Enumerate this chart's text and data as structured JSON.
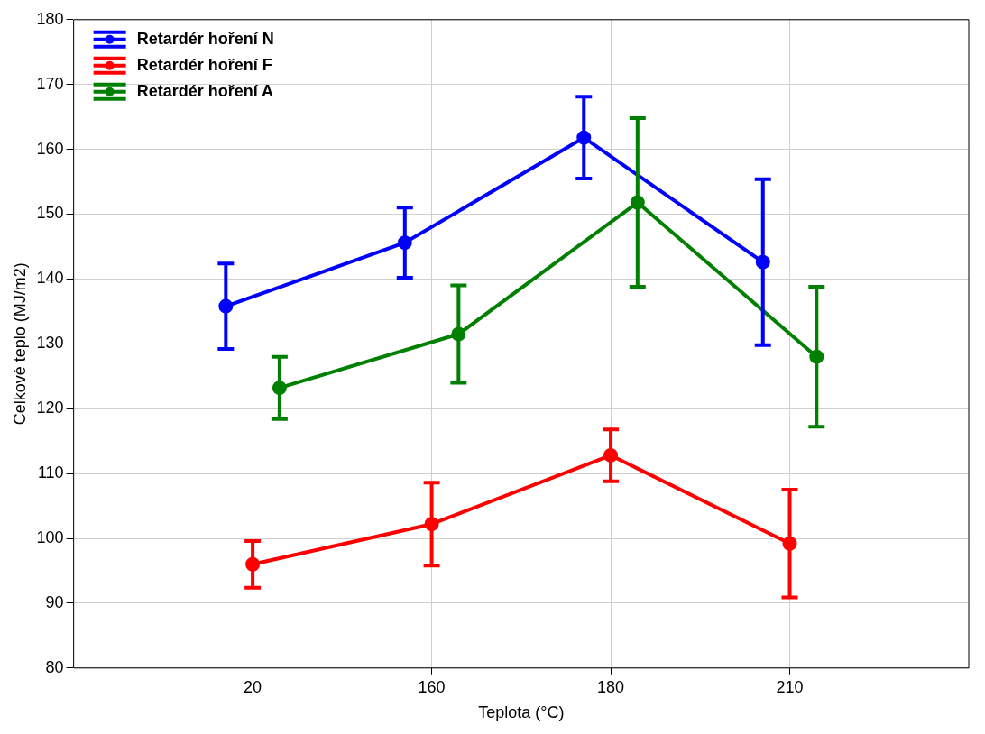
{
  "chart_data": {
    "type": "line",
    "xlabel": "Teplota (°C)",
    "ylabel": "Celkové teplo (MJ/m2)",
    "categories": [
      "20",
      "160",
      "180",
      "210"
    ],
    "series": [
      {
        "name": "Retardér hoření N",
        "color": "#0000ff",
        "values": [
          135.8,
          145.6,
          161.8,
          142.6
        ],
        "errors": [
          6.6,
          5.4,
          6.3,
          12.8
        ]
      },
      {
        "name": "Retardér hoření F",
        "color": "#ff0000",
        "values": [
          96.0,
          102.2,
          112.8,
          99.2
        ],
        "errors": [
          3.6,
          6.4,
          4.0,
          8.3
        ]
      },
      {
        "name": "Retardér hoření A",
        "color": "#008000",
        "values": [
          123.2,
          131.5,
          151.8,
          128.0
        ],
        "errors": [
          4.8,
          7.5,
          13.0,
          10.8
        ]
      }
    ],
    "ylim": [
      80,
      180
    ],
    "yticks": [
      80,
      90,
      100,
      110,
      120,
      130,
      140,
      150,
      160,
      170,
      180
    ],
    "grid": true,
    "legend": "top left",
    "marker": "circle",
    "line_style": "solid"
  }
}
